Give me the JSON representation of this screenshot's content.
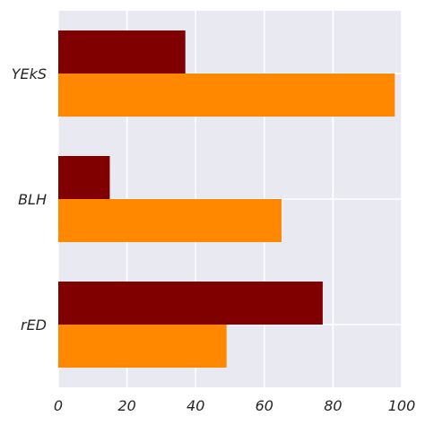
{
  "chart_data": {
    "type": "bar",
    "orientation": "horizontal",
    "categories": [
      "rED",
      "BLH",
      "YEkS"
    ],
    "series": [
      {
        "values": [
          49,
          65,
          98
        ],
        "color": "#ff8800"
      },
      {
        "values": [
          77,
          15,
          37
        ],
        "color": "#800000"
      }
    ],
    "xlim": [
      0,
      100
    ],
    "xticks": [
      0,
      20,
      40,
      60,
      80,
      100
    ],
    "title": "",
    "xlabel": "",
    "ylabel": "",
    "grid": true,
    "legend": "none",
    "background": "#e9e9f2"
  }
}
